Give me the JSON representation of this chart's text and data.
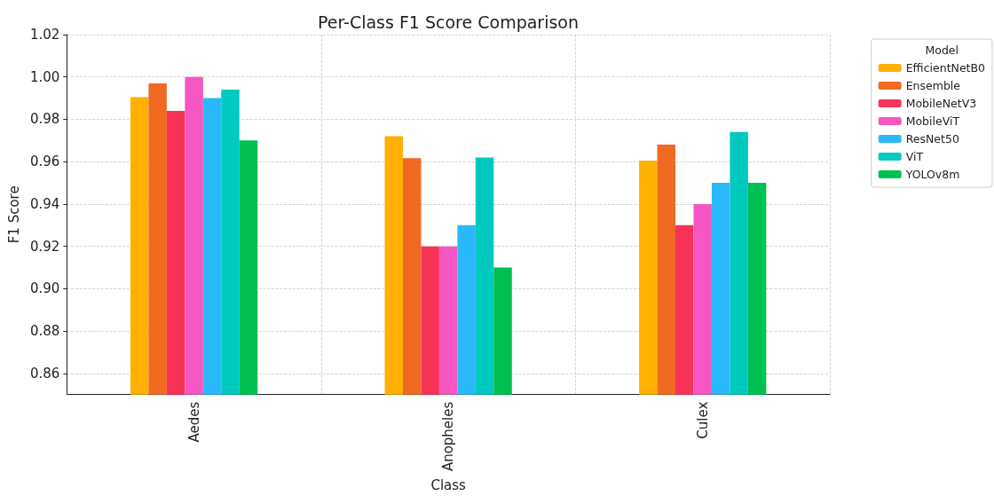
{
  "chart_data": {
    "type": "bar",
    "title": "Per-Class F1 Score Comparison",
    "xlabel": "Class",
    "ylabel": "F1 Score",
    "legend_title": "Model",
    "categories": [
      "Aedes",
      "Anopheles",
      "Culex"
    ],
    "series": [
      {
        "name": "EfficientNetB0",
        "color": "#ffb000",
        "values": [
          0.9905,
          0.972,
          0.9605
        ]
      },
      {
        "name": "Ensemble",
        "color": "#f06a22",
        "values": [
          0.997,
          0.9617,
          0.968
        ]
      },
      {
        "name": "MobileNetV3",
        "color": "#f73457",
        "values": [
          0.984,
          0.92,
          0.93
        ]
      },
      {
        "name": "MobileViT",
        "color": "#f656c3",
        "values": [
          1.0,
          0.92,
          0.94
        ]
      },
      {
        "name": "ResNet50",
        "color": "#2ab9f8",
        "values": [
          0.99,
          0.93,
          0.95
        ]
      },
      {
        "name": "ViT",
        "color": "#00c9c0",
        "values": [
          0.994,
          0.962,
          0.974
        ]
      },
      {
        "name": "YOLOv8m",
        "color": "#00c052",
        "values": [
          0.97,
          0.91,
          0.95
        ]
      }
    ],
    "ylim": [
      0.85,
      1.02
    ],
    "yticks": [
      {
        "value": 0.86,
        "label": "0.86"
      },
      {
        "value": 0.88,
        "label": "0.88"
      },
      {
        "value": 0.9,
        "label": "0.90"
      },
      {
        "value": 0.92,
        "label": "0.92"
      },
      {
        "value": 0.94,
        "label": "0.94"
      },
      {
        "value": 0.96,
        "label": "0.96"
      },
      {
        "value": 0.98,
        "label": "0.98"
      },
      {
        "value": 1.0,
        "label": "1.00"
      },
      {
        "value": 1.02,
        "label": "1.02"
      }
    ],
    "grid": true,
    "legend": "top right"
  }
}
